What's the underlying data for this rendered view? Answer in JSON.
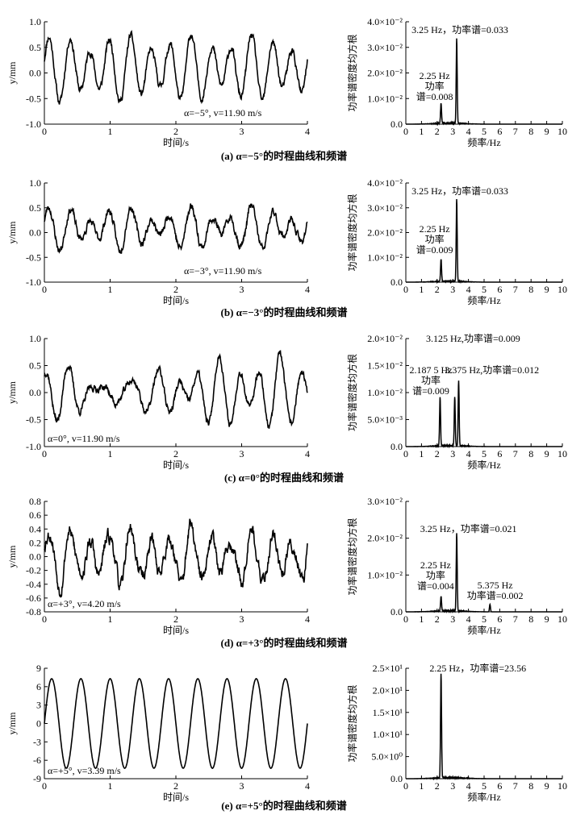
{
  "chart_data": [
    {
      "id": "a-time",
      "type": "line",
      "xlabel": "时间/s",
      "ylabel": "y/mm",
      "xlim": [
        0,
        4
      ],
      "ylim": [
        -1.2,
        1.0
      ],
      "xticks": [
        "0",
        "1",
        "2",
        "3",
        "4"
      ],
      "yticks": [
        "-1.0",
        "-0.5",
        "0.0",
        "0.5",
        "1.0"
      ],
      "annotation": "α=−5°, v=11.90 m/s",
      "signal": {
        "freq": [
          3.25,
          2.25
        ],
        "amp": [
          0.55,
          0.18
        ],
        "noise": 0.07,
        "seed": 11
      }
    },
    {
      "id": "a-psd",
      "type": "line",
      "xlabel": "频率/Hz",
      "ylabel": "功率谱密度均方根",
      "xlim": [
        0,
        10
      ],
      "ylim": [
        0,
        0.04
      ],
      "xticks": [
        "0",
        "1",
        "2",
        "3",
        "4",
        "5",
        "6",
        "7",
        "8",
        "9",
        "10"
      ],
      "yticks": [
        "0.0",
        "1.0×10⁻²",
        "2.0×10⁻²",
        "3.0×10⁻²",
        "4.0×10⁻²"
      ],
      "peaks": [
        {
          "x": 3.25,
          "y": 0.033
        },
        {
          "x": 2.25,
          "y": 0.008
        }
      ],
      "labels": [
        "3.25 Hz，功率谱=0.033",
        "2.25 Hz",
        "功率",
        "谱=0.008"
      ]
    },
    {
      "id": "b-time",
      "type": "line",
      "xlabel": "时间/s",
      "ylabel": "y/mm",
      "xlim": [
        0,
        4
      ],
      "ylim": [
        -1.2,
        1.0
      ],
      "xticks": [
        "0",
        "1",
        "2",
        "3",
        "4"
      ],
      "yticks": [
        "-1.0",
        "-0.5",
        "0.0",
        "0.5",
        "1.0"
      ],
      "annotation": "α=−3°, v=11.90 m/s",
      "signal": {
        "freq": [
          3.25,
          2.25
        ],
        "amp": [
          0.32,
          0.18
        ],
        "noise": 0.08,
        "seed": 23
      }
    },
    {
      "id": "b-psd",
      "type": "line",
      "xlabel": "频率/Hz",
      "ylabel": "功率谱密度均方根",
      "xlim": [
        0,
        10
      ],
      "ylim": [
        0,
        0.04
      ],
      "xticks": [
        "0",
        "1",
        "2",
        "3",
        "4",
        "5",
        "6",
        "7",
        "8",
        "9",
        "10"
      ],
      "yticks": [
        "0.0",
        "1.0×10⁻²",
        "2.0×10⁻²",
        "3.0×10⁻²",
        "4.0×10⁻²"
      ],
      "peaks": [
        {
          "x": 3.25,
          "y": 0.033
        },
        {
          "x": 2.25,
          "y": 0.009
        }
      ],
      "labels": [
        "3.25 Hz，功率谱=0.033",
        "2.25 Hz",
        "功率",
        "谱=0.009"
      ]
    },
    {
      "id": "c-time",
      "type": "line",
      "xlabel": "时间/s",
      "ylabel": "y/mm",
      "xlim": [
        0,
        4
      ],
      "ylim": [
        -1.0,
        1.0
      ],
      "xticks": [
        "0",
        "1",
        "2",
        "3",
        "4"
      ],
      "yticks": [
        "-1.0",
        "-0.5",
        "0.0",
        "0.5",
        "1.0"
      ],
      "annotation": "α=0°, v=11.90 m/s",
      "signal": {
        "freq": [
          3.125,
          3.375,
          2.1875
        ],
        "amp": [
          0.28,
          0.22,
          0.22
        ],
        "noise": 0.06,
        "seed": 37
      }
    },
    {
      "id": "c-psd",
      "type": "line",
      "xlabel": "频率/Hz",
      "ylabel": "功率谱密度均方根",
      "xlim": [
        0,
        10
      ],
      "ylim": [
        0,
        0.02
      ],
      "xticks": [
        "0",
        "1",
        "2",
        "3",
        "4",
        "5",
        "6",
        "7",
        "8",
        "9",
        "10"
      ],
      "yticks": [
        "0.0",
        "5.0×10⁻³",
        "1.0×10⁻²",
        "1.5×10⁻²",
        "2.0×10⁻²"
      ],
      "peaks": [
        {
          "x": 3.125,
          "y": 0.009
        },
        {
          "x": 3.375,
          "y": 0.012
        },
        {
          "x": 2.1875,
          "y": 0.009
        }
      ],
      "labels": [
        "3.125 Hz,功率谱=0.009",
        "3.375 Hz,功率谱=0.012",
        "2.187 5 Hz",
        "功率",
        "谱=0.009"
      ]
    },
    {
      "id": "d-time",
      "type": "line",
      "xlabel": "时间/s",
      "ylabel": "y/mm",
      "xlim": [
        0,
        4
      ],
      "ylim": [
        -0.8,
        0.8
      ],
      "xticks": [
        "0",
        "1",
        "2",
        "3",
        "4"
      ],
      "yticks": [
        "-0.8",
        "-0.6",
        "-0.4",
        "-0.2",
        "0.0",
        "0.2",
        "0.4",
        "0.6",
        "0.8"
      ],
      "annotation": "α=+3°, v=4.20 m/s",
      "signal": {
        "freq": [
          3.25,
          2.25,
          5.375
        ],
        "amp": [
          0.3,
          0.12,
          0.06
        ],
        "noise": 0.09,
        "seed": 53
      }
    },
    {
      "id": "d-psd",
      "type": "line",
      "xlabel": "频率/Hz",
      "ylabel": "功率谱密度均方根",
      "xlim": [
        0,
        10
      ],
      "ylim": [
        0,
        0.03
      ],
      "xticks": [
        "0",
        "1",
        "2",
        "3",
        "4",
        "5",
        "6",
        "7",
        "8",
        "9",
        "10"
      ],
      "yticks": [
        "0.0",
        "1.0×10⁻²",
        "2.0×10⁻²",
        "3.0×10⁻²"
      ],
      "peaks": [
        {
          "x": 3.25,
          "y": 0.021
        },
        {
          "x": 2.25,
          "y": 0.004
        },
        {
          "x": 5.375,
          "y": 0.002
        }
      ],
      "labels": [
        "3.25 Hz，功率谱=0.021",
        "2.25 Hz",
        "功率",
        "谱=0.004",
        "5.375 Hz",
        "功率谱=0.002"
      ]
    },
    {
      "id": "e-time",
      "type": "line",
      "xlabel": "时间/s",
      "ylabel": "y/mm",
      "xlim": [
        0,
        4
      ],
      "ylim": [
        -9,
        9
      ],
      "xticks": [
        "0",
        "1",
        "2",
        "3",
        "4"
      ],
      "yticks": [
        "-9",
        "-6",
        "-3",
        "0",
        "3",
        "6",
        "9"
      ],
      "annotation": "α=+5°, v=3.39 m/s",
      "signal": {
        "freq": [
          2.25
        ],
        "amp": [
          7.3
        ],
        "noise": 0,
        "seed": 1
      }
    },
    {
      "id": "e-psd",
      "type": "line",
      "xlabel": "频率/Hz",
      "ylabel": "功率谱密度均方根",
      "xlim": [
        0,
        10
      ],
      "ylim": [
        0,
        25
      ],
      "xticks": [
        "0",
        "1",
        "2",
        "3",
        "4",
        "5",
        "6",
        "7",
        "8",
        "9",
        "10"
      ],
      "yticks": [
        "0.0",
        "5.0×10⁰",
        "1.0×10¹",
        "1.5×10¹",
        "2.0×10¹",
        "2.5×10¹"
      ],
      "peaks": [
        {
          "x": 2.25,
          "y": 23.56
        }
      ],
      "labels": [
        "2.25 Hz，功率谱=23.56"
      ]
    }
  ],
  "captions": [
    "(a) α=−5°的时程曲线和频谱",
    "(b) α=−3°的时程曲线和频谱",
    "(c) α=0°的时程曲线和频谱",
    "(d) α=+3°的时程曲线和频谱",
    "(e) α=+5°的时程曲线和频谱"
  ]
}
